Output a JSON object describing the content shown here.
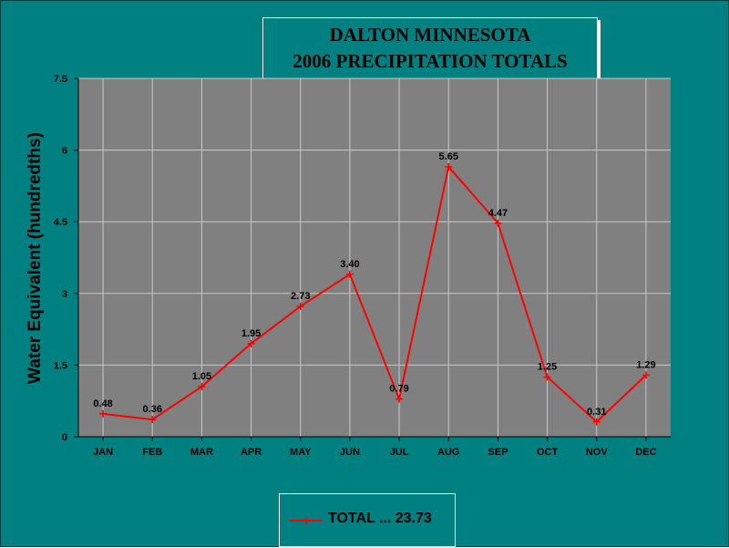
{
  "chart_data": {
    "type": "line",
    "title": "DALTON MINNESOTA",
    "subtitle": "2006 PRECIPITATION TOTALS",
    "ylabel": "Water Equivalent (hundredths)",
    "xlabel": "",
    "categories": [
      "JAN",
      "FEB",
      "MAR",
      "APR",
      "MAY",
      "JUN",
      "JUL",
      "AUG",
      "SEP",
      "OCT",
      "NOV",
      "DEC"
    ],
    "series": [
      {
        "name": "TOTAL ... 23.73",
        "values": [
          0.48,
          0.36,
          1.05,
          1.95,
          2.73,
          3.4,
          0.79,
          5.65,
          4.47,
          1.25,
          0.31,
          1.29
        ],
        "labels": [
          "0.48",
          "0.36",
          "1.05",
          "1.95",
          "2.73",
          "3.40",
          "0.79",
          "5.65",
          "4.47",
          "1.25",
          "0.31",
          "1.29"
        ]
      }
    ],
    "ylim": [
      0,
      7.5
    ],
    "yticks": [
      "0",
      "1.5",
      "3",
      "4.5",
      "6",
      "7.5"
    ],
    "grid": true,
    "legend": "bottom-center",
    "colors": {
      "background": "#008080",
      "plot_area": "#808080",
      "line": "#ff0000",
      "grid": "#c8c8c8"
    }
  }
}
